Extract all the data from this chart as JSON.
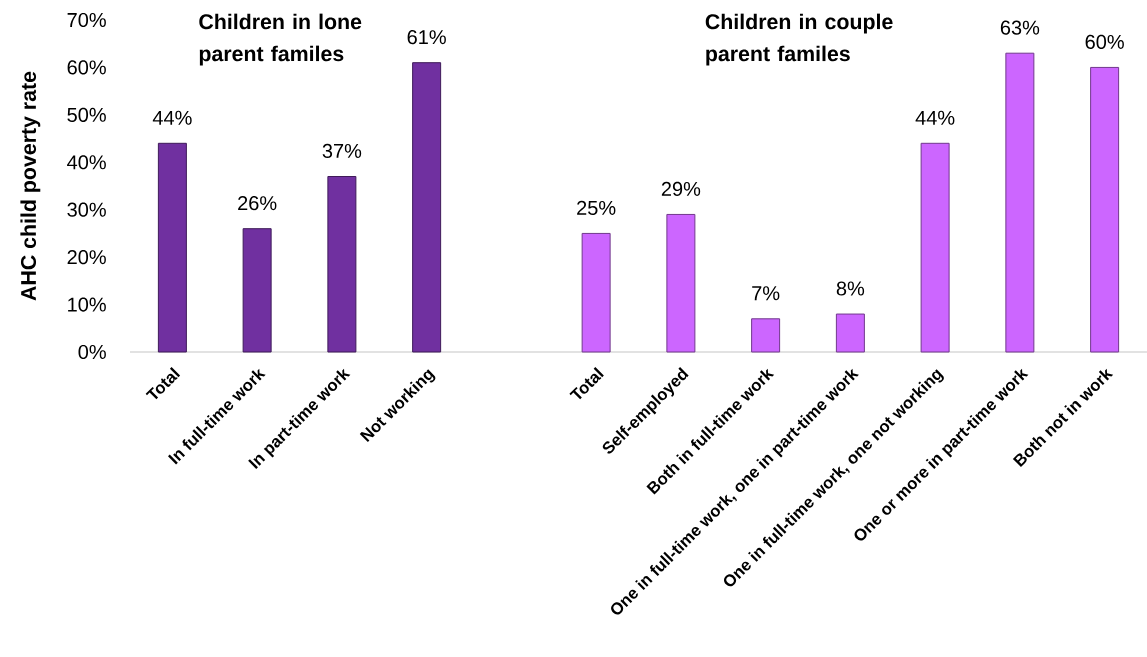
{
  "chart_data": {
    "type": "bar",
    "categories": [
      "Total",
      "In full-time work",
      "In part-time work",
      "Not working",
      null,
      "Total",
      "Self-employed",
      "Both in full-time work",
      "One in full-time work, one in part-time work",
      "One in full-time work, one not working",
      "One or more in part-time work",
      "Both not in work"
    ],
    "values": [
      44,
      26,
      37,
      61,
      null,
      25,
      29,
      7,
      8,
      44,
      63,
      60
    ],
    "colors": [
      "#7030a0",
      "#7030a0",
      "#7030a0",
      "#7030a0",
      null,
      "#cc66ff",
      "#cc66ff",
      "#cc66ff",
      "#cc66ff",
      "#cc66ff",
      "#cc66ff",
      "#cc66ff"
    ],
    "value_labels": [
      "44%",
      "26%",
      "37%",
      "61%",
      null,
      "25%",
      "29%",
      "7%",
      "8%",
      "44%",
      "63%",
      "60%"
    ],
    "ylabel": "AHC child poverty rate",
    "ylim": [
      0,
      70
    ],
    "yticks": [
      {
        "value": 0,
        "label": "0%"
      },
      {
        "value": 10,
        "label": "10%"
      },
      {
        "value": 20,
        "label": "20%"
      },
      {
        "value": 30,
        "label": "30%"
      },
      {
        "value": 40,
        "label": "40%"
      },
      {
        "value": 50,
        "label": "50%"
      },
      {
        "value": 60,
        "label": "60%"
      },
      {
        "value": 70,
        "label": "70%"
      }
    ],
    "annotations": [
      "Children in lone parent familes",
      "Children in couple parent familes"
    ]
  }
}
